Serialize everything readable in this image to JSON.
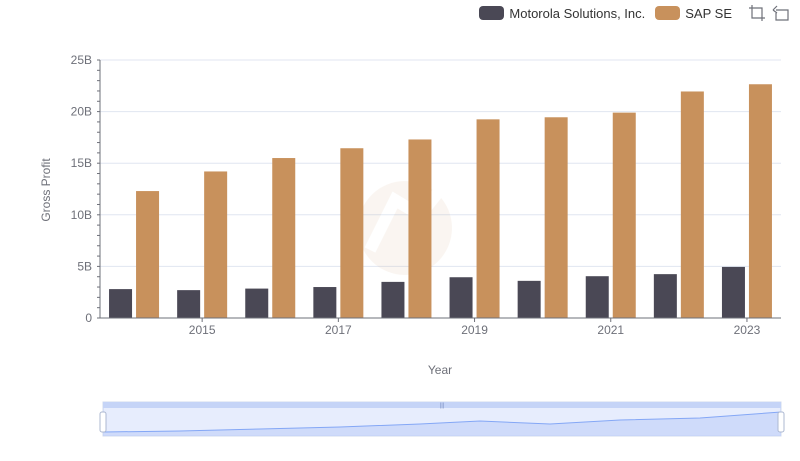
{
  "colors": {
    "motorola": "#4a4855",
    "sap": "#c8915c",
    "axis": "#6e7079",
    "grid": "#e0e6f1",
    "slider_fill": "#d9e3fb",
    "slider_border": "#d2dbee"
  },
  "legend": {
    "items": [
      {
        "label": "Motorola Solutions, Inc.",
        "color": "#4a4855"
      },
      {
        "label": "SAP SE",
        "color": "#c8915c"
      }
    ],
    "icons": [
      "zoom-icon",
      "restore-icon"
    ]
  },
  "chart_data": {
    "type": "bar",
    "xlabel": "Year",
    "ylabel": "Gross Profit",
    "categories": [
      "2014",
      "2015",
      "2016",
      "2017",
      "2018",
      "2019",
      "2020",
      "2021",
      "2022",
      "2023"
    ],
    "x_tick_labels": [
      "2015",
      "2017",
      "2019",
      "2021",
      "2023"
    ],
    "y_tick_labels": [
      "0",
      "5B",
      "10B",
      "15B",
      "20B",
      "25B"
    ],
    "ylim": [
      0,
      25
    ],
    "y_unit": "B",
    "grid": true,
    "legend_position": "top-right",
    "series": [
      {
        "name": "Motorola Solutions, Inc.",
        "values": [
          2.8,
          2.7,
          2.85,
          3.0,
          3.5,
          3.95,
          3.6,
          4.05,
          4.25,
          4.95
        ]
      },
      {
        "name": "SAP SE",
        "values": [
          12.3,
          14.2,
          15.5,
          16.45,
          17.3,
          19.25,
          19.45,
          19.9,
          21.95,
          22.65
        ]
      }
    ]
  }
}
